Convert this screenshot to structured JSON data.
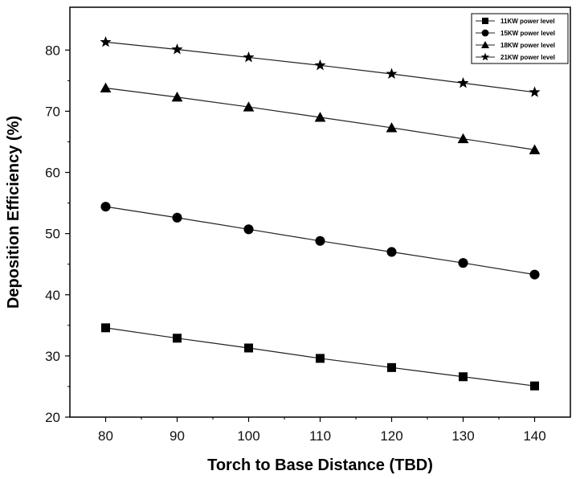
{
  "chart_data": {
    "type": "line",
    "xlabel": "Torch to Base Distance (TBD)",
    "ylabel": "Deposition Efficiency (%)",
    "x": [
      80,
      90,
      100,
      110,
      120,
      130,
      140
    ],
    "xlim": [
      75,
      145
    ],
    "ylim": [
      20,
      87
    ],
    "xticks": [
      80,
      90,
      100,
      110,
      120,
      130,
      140
    ],
    "yticks": [
      20,
      30,
      40,
      50,
      60,
      70,
      80
    ],
    "grid": false,
    "legend_position": "top-right",
    "colors": {
      "line": "#222222",
      "marker": "#000000",
      "axis": "#000000"
    },
    "series": [
      {
        "name": "11KW power level",
        "marker": "square",
        "values": [
          34.6,
          32.9,
          31.3,
          29.6,
          28.1,
          26.6,
          25.1
        ]
      },
      {
        "name": "15KW power level",
        "marker": "circle",
        "values": [
          54.4,
          52.6,
          50.7,
          48.8,
          47.0,
          45.2,
          43.3
        ]
      },
      {
        "name": "18KW power level",
        "marker": "triangle",
        "values": [
          73.8,
          72.3,
          70.7,
          69.0,
          67.3,
          65.5,
          63.7
        ]
      },
      {
        "name": "21KW power level",
        "marker": "star",
        "values": [
          81.3,
          80.1,
          78.8,
          77.5,
          76.1,
          74.6,
          73.1
        ]
      }
    ]
  }
}
